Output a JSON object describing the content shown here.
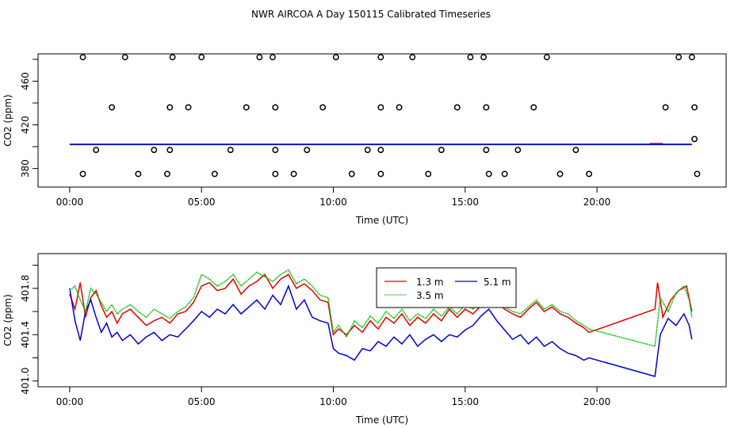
{
  "title": "NWR AIRCOA A  Day 150115  Calibrated Timeseries",
  "colors": {
    "red": "#e00000",
    "green": "#00c000",
    "blue": "#0000d0",
    "axis": "#000000"
  },
  "chart_data": [
    {
      "type": "scatter",
      "xlabel": "Time (UTC)",
      "ylabel": "CO2 (ppm)",
      "xlim": [
        -1.2,
        24.9
      ],
      "ylim": [
        363,
        485
      ],
      "xticks": [
        0,
        5,
        10,
        15,
        20
      ],
      "xtick_labels": [
        "00:00",
        "05:00",
        "10:00",
        "15:00",
        "20:00"
      ],
      "yticks": [
        380,
        420,
        460
      ],
      "ytick_labels": [
        "380",
        "420",
        "460"
      ],
      "calibration_points": {
        "x": [
          0.5,
          2.1,
          3.9,
          5.0,
          7.2,
          7.7,
          10.1,
          11.8,
          13.0,
          15.2,
          15.7,
          18.1,
          23.1,
          23.6,
          1.6,
          3.8,
          4.5,
          6.7,
          7.8,
          9.6,
          11.8,
          12.5,
          14.7,
          15.8,
          17.6,
          22.6,
          23.7,
          1.0,
          3.2,
          3.8,
          6.1,
          7.8,
          9.0,
          11.3,
          11.8,
          14.1,
          15.8,
          17.0,
          19.2,
          23.7,
          0.5,
          2.6,
          3.7,
          5.5,
          7.8,
          8.5,
          10.7,
          11.8,
          13.6,
          15.9,
          16.5,
          18.6,
          19.7,
          23.8
        ],
        "y": [
          482,
          482,
          482,
          482,
          482,
          482,
          482,
          482,
          482,
          482,
          482,
          482,
          482,
          482,
          436,
          436,
          436,
          436,
          436,
          436,
          436,
          436,
          436,
          436,
          436,
          436,
          436,
          397,
          397,
          397,
          397,
          397,
          397,
          397,
          397,
          397,
          397,
          397,
          397,
          407,
          375,
          375,
          375,
          375,
          375,
          375,
          375,
          375,
          375,
          375,
          375,
          375,
          375,
          375
        ]
      },
      "series": [
        {
          "color": "#00c000",
          "x": [
            0.0,
            23.6
          ],
          "y": [
            402.3,
            402.3
          ]
        },
        {
          "color": "#e00000",
          "x": [
            22.0,
            22.5
          ],
          "y": [
            402.8,
            402.8
          ]
        },
        {
          "color": "#0000d0",
          "x": [
            0.0,
            23.6
          ],
          "y": [
            402.0,
            402.0
          ]
        }
      ]
    },
    {
      "type": "line",
      "xlabel": "Time (UTC)",
      "ylabel": "CO2 (ppm)",
      "xlim": [
        -1.2,
        24.9
      ],
      "ylim": [
        400.95,
        402.1
      ],
      "xticks": [
        0,
        5,
        10,
        15,
        20
      ],
      "xtick_labels": [
        "00:00",
        "05:00",
        "10:00",
        "15:00",
        "20:00"
      ],
      "yticks": [
        401.0,
        401.4,
        401.8
      ],
      "ytick_labels": [
        "401.0",
        "401.4",
        "401.8"
      ],
      "legend": {
        "placement": "top-center"
      },
      "series": [
        {
          "name": "1.3 m",
          "color": "#e00000",
          "x": [
            0.0,
            0.2,
            0.4,
            0.6,
            0.8,
            1.0,
            1.2,
            1.4,
            1.6,
            1.8,
            2.0,
            2.3,
            2.6,
            2.9,
            3.2,
            3.5,
            3.8,
            4.1,
            4.4,
            4.7,
            5.0,
            5.3,
            5.6,
            5.9,
            6.2,
            6.5,
            6.8,
            7.1,
            7.4,
            7.7,
            8.0,
            8.3,
            8.6,
            8.9,
            9.2,
            9.5,
            9.8,
            10.0,
            10.2,
            10.5,
            10.8,
            11.1,
            11.4,
            11.7,
            12.0,
            12.3,
            12.6,
            12.9,
            13.2,
            13.5,
            13.8,
            14.1,
            14.4,
            14.7,
            15.0,
            15.3,
            15.6,
            15.9,
            16.2,
            16.5,
            16.8,
            17.1,
            17.4,
            17.7,
            18.0,
            18.3,
            18.6,
            18.9,
            19.2,
            19.5,
            19.7,
            22.2,
            22.3,
            22.5,
            22.8,
            23.1,
            23.4,
            23.6
          ],
          "y": [
            401.75,
            401.62,
            401.85,
            401.55,
            401.72,
            401.78,
            401.65,
            401.55,
            401.6,
            401.5,
            401.58,
            401.62,
            401.55,
            401.48,
            401.52,
            401.55,
            401.5,
            401.58,
            401.6,
            401.68,
            401.82,
            401.85,
            401.78,
            401.8,
            401.88,
            401.75,
            401.82,
            401.86,
            401.92,
            401.8,
            401.88,
            401.92,
            401.8,
            401.84,
            401.78,
            401.7,
            401.68,
            401.4,
            401.45,
            401.4,
            401.48,
            401.42,
            401.52,
            401.45,
            401.55,
            401.5,
            401.58,
            401.48,
            401.55,
            401.5,
            401.58,
            401.52,
            401.62,
            401.55,
            401.62,
            401.58,
            401.65,
            401.72,
            401.68,
            401.62,
            401.58,
            401.55,
            401.62,
            401.68,
            401.6,
            401.64,
            401.58,
            401.55,
            401.5,
            401.46,
            401.42,
            401.62,
            401.85,
            401.55,
            401.7,
            401.78,
            401.82,
            401.6
          ]
        },
        {
          "name": "5.1 m",
          "color": "#0000d0",
          "x": [
            0.0,
            0.2,
            0.4,
            0.6,
            0.8,
            1.0,
            1.2,
            1.4,
            1.6,
            1.8,
            2.0,
            2.3,
            2.6,
            2.9,
            3.2,
            3.5,
            3.8,
            4.1,
            4.4,
            4.7,
            5.0,
            5.3,
            5.6,
            5.9,
            6.2,
            6.5,
            6.8,
            7.1,
            7.4,
            7.7,
            8.0,
            8.3,
            8.6,
            8.9,
            9.2,
            9.5,
            9.8,
            10.0,
            10.2,
            10.5,
            10.8,
            11.1,
            11.4,
            11.7,
            12.0,
            12.3,
            12.6,
            12.9,
            13.2,
            13.5,
            13.8,
            14.1,
            14.4,
            14.7,
            15.0,
            15.3,
            15.6,
            15.9,
            16.2,
            16.5,
            16.8,
            17.1,
            17.4,
            17.7,
            18.0,
            18.3,
            18.6,
            18.9,
            19.2,
            19.5,
            19.7,
            22.2,
            22.4,
            22.7,
            23.0,
            23.3,
            23.5,
            23.6
          ],
          "y": [
            401.8,
            401.52,
            401.35,
            401.6,
            401.7,
            401.55,
            401.42,
            401.5,
            401.38,
            401.42,
            401.35,
            401.4,
            401.32,
            401.38,
            401.42,
            401.35,
            401.4,
            401.38,
            401.45,
            401.52,
            401.6,
            401.55,
            401.62,
            401.58,
            401.66,
            401.58,
            401.64,
            401.7,
            401.62,
            401.74,
            401.66,
            401.82,
            401.62,
            401.7,
            401.55,
            401.52,
            401.5,
            401.28,
            401.24,
            401.22,
            401.18,
            401.28,
            401.26,
            401.34,
            401.3,
            401.38,
            401.32,
            401.4,
            401.3,
            401.36,
            401.4,
            401.34,
            401.4,
            401.38,
            401.44,
            401.48,
            401.56,
            401.62,
            401.52,
            401.44,
            401.36,
            401.4,
            401.32,
            401.38,
            401.3,
            401.34,
            401.28,
            401.24,
            401.22,
            401.18,
            401.2,
            401.04,
            401.4,
            401.54,
            401.48,
            401.58,
            401.48,
            401.36
          ]
        },
        {
          "name": "3.5 m",
          "color": "#00c000",
          "x": [
            0.0,
            0.2,
            0.4,
            0.6,
            0.8,
            1.0,
            1.2,
            1.4,
            1.6,
            1.8,
            2.0,
            2.3,
            2.6,
            2.9,
            3.2,
            3.5,
            3.8,
            4.1,
            4.4,
            4.7,
            5.0,
            5.3,
            5.6,
            5.9,
            6.2,
            6.5,
            6.8,
            7.1,
            7.4,
            7.7,
            8.0,
            8.3,
            8.6,
            8.9,
            9.2,
            9.5,
            9.8,
            10.0,
            10.2,
            10.5,
            10.8,
            11.1,
            11.4,
            11.7,
            12.0,
            12.3,
            12.6,
            12.9,
            13.2,
            13.5,
            13.8,
            14.1,
            14.4,
            14.7,
            15.0,
            15.3,
            15.6,
            15.9,
            16.2,
            16.5,
            16.8,
            17.1,
            17.4,
            17.7,
            18.0,
            18.3,
            18.6,
            18.9,
            19.2,
            19.5,
            19.7,
            22.2,
            22.4,
            22.7,
            23.0,
            23.3,
            23.5,
            23.6
          ],
          "y": [
            401.78,
            401.82,
            401.7,
            401.6,
            401.8,
            401.75,
            401.68,
            401.6,
            401.66,
            401.58,
            401.62,
            401.66,
            401.6,
            401.55,
            401.62,
            401.58,
            401.54,
            401.6,
            401.64,
            401.72,
            401.92,
            401.88,
            401.82,
            401.86,
            401.92,
            401.82,
            401.88,
            401.94,
            401.9,
            401.86,
            401.92,
            401.96,
            401.84,
            401.88,
            401.82,
            401.74,
            401.72,
            401.42,
            401.48,
            401.38,
            401.52,
            401.46,
            401.56,
            401.5,
            401.6,
            401.54,
            401.62,
            401.52,
            401.58,
            401.54,
            401.62,
            401.56,
            401.64,
            401.58,
            401.66,
            401.62,
            401.68,
            401.74,
            401.7,
            401.64,
            401.6,
            401.58,
            401.64,
            401.7,
            401.62,
            401.66,
            401.6,
            401.58,
            401.52,
            401.48,
            401.45,
            401.3,
            401.72,
            401.6,
            401.76,
            401.82,
            401.7,
            401.55
          ]
        }
      ]
    }
  ]
}
